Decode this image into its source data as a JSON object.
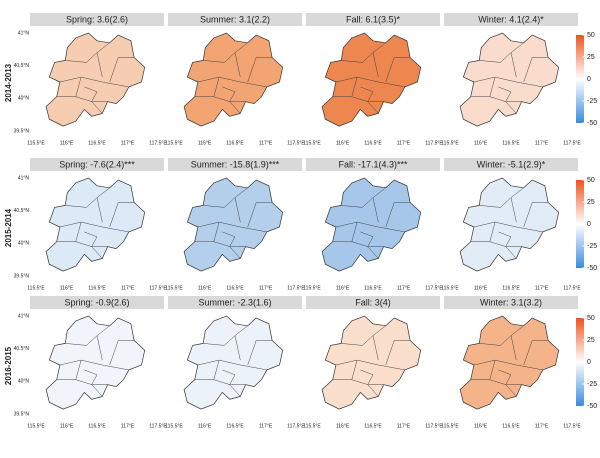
{
  "rows": [
    {
      "label": "2014-2013",
      "panels": [
        {
          "title": "Spring: 3.6(2.6)",
          "color": "#f7cdb2"
        },
        {
          "title": "Summer: 3.1(2.2)",
          "color": "#f2a473"
        },
        {
          "title": "Fall: 6.1(3.5)*",
          "color": "#ee8650"
        },
        {
          "title": "Winter: 4.1(2.4)*",
          "color": "#f9dccb"
        }
      ]
    },
    {
      "label": "2015-2014",
      "panels": [
        {
          "title": "Spring: -7.6(2.4)***",
          "color": "#dce9f6"
        },
        {
          "title": "Summer: -15.8(1.9)***",
          "color": "#b3cfec"
        },
        {
          "title": "Fall: -17.1(4.3)***",
          "color": "#a6c7ea"
        },
        {
          "title": "Winter: -5.1(2.9)*",
          "color": "#e2ecf7"
        }
      ]
    },
    {
      "label": "2016-2015",
      "panels": [
        {
          "title": "Spring: -0.9(2.6)",
          "color": "#f1f5fb"
        },
        {
          "title": "Summer: -2.3(1.6)",
          "color": "#ecf2fa"
        },
        {
          "title": "Fall: 3(4)",
          "color": "#fadfcd"
        },
        {
          "title": "Winter: 3.1(3.2)",
          "color": "#f5b389"
        }
      ]
    }
  ],
  "lat_labels": [
    "41°N",
    "40.5°N",
    "40°N",
    "39.5°N"
  ],
  "lon_labels": [
    "115.5°E",
    "116°E",
    "116.5°E",
    "117°E",
    "117.5°E"
  ],
  "colorbar": {
    "lim": [
      -50,
      50
    ],
    "ticks": [
      50,
      25,
      0,
      -25,
      -50
    ],
    "colors": [
      "#3a8ae0",
      "#ffffff",
      "#f0521c"
    ]
  }
}
